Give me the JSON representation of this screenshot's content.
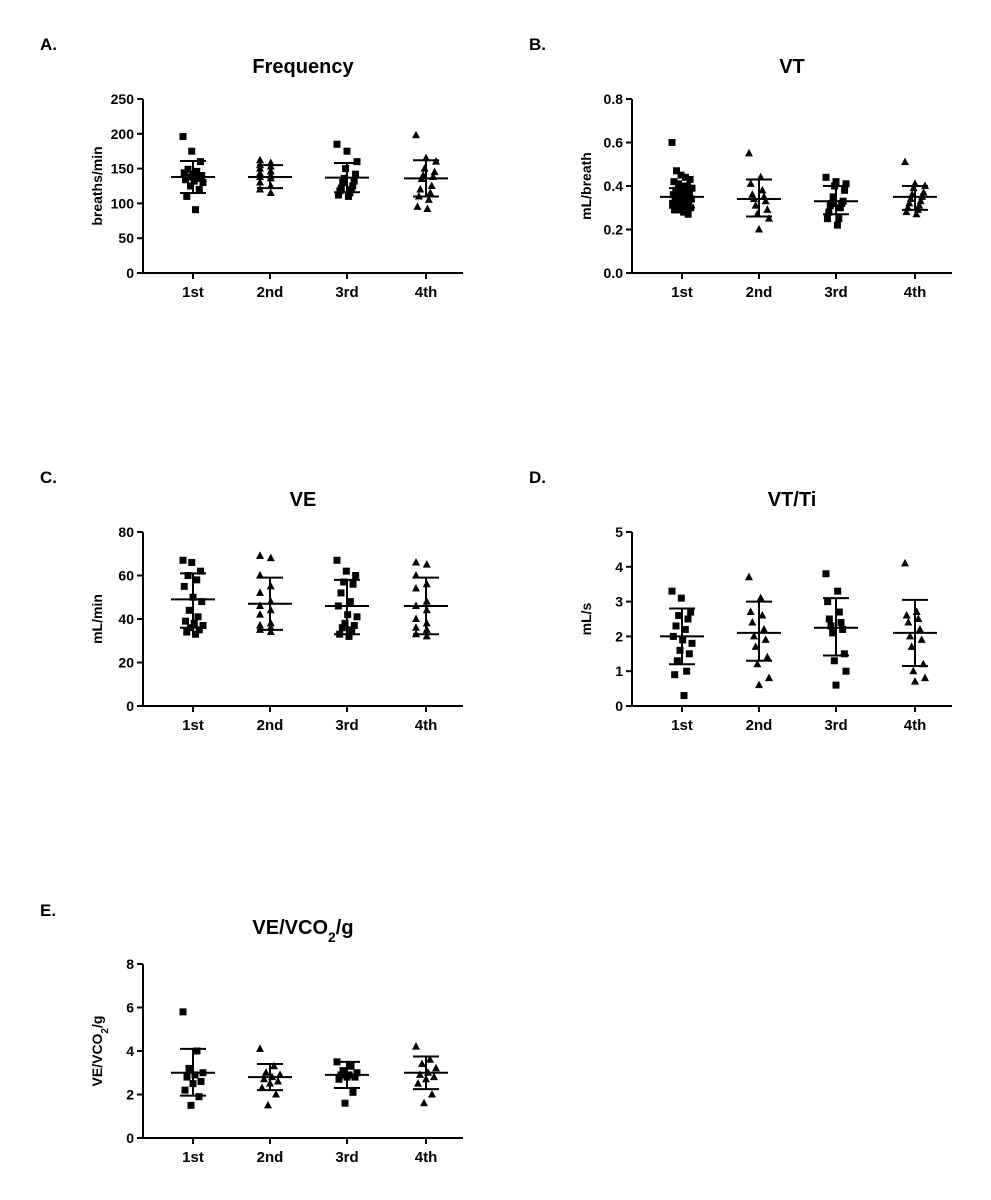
{
  "chart_data": [
    {
      "panel": "A.",
      "type": "scatter",
      "title": "Frequency",
      "title_sub": "",
      "title_after": "",
      "ylabel": "breaths/min",
      "ylabel_sub": "",
      "ylabel_after": "",
      "categories": [
        "1st",
        "2nd",
        "3rd",
        "4th"
      ],
      "ylim": [
        0,
        250
      ],
      "yticks": [
        0,
        50,
        100,
        150,
        200,
        250
      ],
      "ytick_labels": [
        "0",
        "50",
        "100",
        "150",
        "200",
        "250"
      ],
      "markers": [
        "square",
        "triangle",
        "square",
        "triangle"
      ],
      "series": [
        {
          "category": "1st",
          "mean": 138,
          "sd_low": 115,
          "sd_high": 161,
          "values": [
            196,
            175,
            160,
            149,
            146,
            144,
            142,
            140,
            138,
            136,
            134,
            132,
            130,
            125,
            120,
            110,
            91
          ]
        },
        {
          "category": "2nd",
          "mean": 138,
          "sd_low": 122,
          "sd_high": 155,
          "values": [
            162,
            158,
            155,
            153,
            150,
            146,
            143,
            140,
            138,
            136,
            130,
            125,
            120,
            115
          ]
        },
        {
          "category": "3rd",
          "mean": 137,
          "sd_low": 116,
          "sd_high": 158,
          "values": [
            185,
            175,
            160,
            150,
            142,
            136,
            132,
            130,
            125,
            122,
            120,
            118,
            115,
            112,
            110
          ]
        },
        {
          "category": "4th",
          "mean": 136,
          "sd_low": 110,
          "sd_high": 162,
          "values": [
            198,
            165,
            160,
            150,
            145,
            140,
            138,
            135,
            125,
            120,
            115,
            110,
            105,
            95,
            92
          ]
        }
      ]
    },
    {
      "panel": "B.",
      "type": "scatter",
      "title": "VT",
      "title_sub": "",
      "title_after": "",
      "ylabel": "mL/breath",
      "ylabel_sub": "",
      "ylabel_after": "",
      "categories": [
        "1st",
        "2nd",
        "3rd",
        "4th"
      ],
      "ylim": [
        0,
        0.8
      ],
      "yticks": [
        0,
        0.2,
        0.4,
        0.6,
        0.8
      ],
      "ytick_labels": [
        "0.0",
        "0.2",
        "0.4",
        "0.6",
        "0.8"
      ],
      "markers": [
        "square",
        "triangle",
        "square",
        "triangle"
      ],
      "series": [
        {
          "category": "1st",
          "mean": 0.35,
          "sd_low": 0.3,
          "sd_high": 0.39,
          "values": [
            0.6,
            0.47,
            0.45,
            0.44,
            0.43,
            0.42,
            0.41,
            0.4,
            0.4,
            0.39,
            0.38,
            0.38,
            0.37,
            0.37,
            0.36,
            0.36,
            0.35,
            0.35,
            0.34,
            0.34,
            0.33,
            0.33,
            0.32,
            0.32,
            0.31,
            0.31,
            0.3,
            0.3,
            0.29,
            0.29,
            0.28,
            0.27
          ]
        },
        {
          "category": "2nd",
          "mean": 0.34,
          "sd_low": 0.26,
          "sd_high": 0.43,
          "values": [
            0.55,
            0.44,
            0.41,
            0.38,
            0.36,
            0.35,
            0.34,
            0.33,
            0.31,
            0.29,
            0.27,
            0.25,
            0.2
          ]
        },
        {
          "category": "3rd",
          "mean": 0.33,
          "sd_low": 0.27,
          "sd_high": 0.4,
          "values": [
            0.44,
            0.42,
            0.41,
            0.4,
            0.38,
            0.35,
            0.33,
            0.32,
            0.32,
            0.31,
            0.3,
            0.28,
            0.25,
            0.25,
            0.22
          ]
        },
        {
          "category": "4th",
          "mean": 0.35,
          "sd_low": 0.29,
          "sd_high": 0.4,
          "values": [
            0.51,
            0.41,
            0.4,
            0.39,
            0.37,
            0.36,
            0.35,
            0.34,
            0.33,
            0.32,
            0.31,
            0.3,
            0.29,
            0.28,
            0.27
          ]
        }
      ]
    },
    {
      "panel": "C.",
      "type": "scatter",
      "title": "VE",
      "title_sub": "",
      "title_after": "",
      "ylabel": "mL/min",
      "ylabel_sub": "",
      "ylabel_after": "",
      "categories": [
        "1st",
        "2nd",
        "3rd",
        "4th"
      ],
      "ylim": [
        0,
        80
      ],
      "yticks": [
        0,
        20,
        40,
        60,
        80
      ],
      "ytick_labels": [
        "0",
        "20",
        "40",
        "60",
        "80"
      ],
      "markers": [
        "square",
        "triangle",
        "square",
        "triangle"
      ],
      "series": [
        {
          "category": "1st",
          "mean": 49,
          "sd_low": 36,
          "sd_high": 61,
          "values": [
            67,
            66,
            62,
            60,
            58,
            55,
            50,
            48,
            44,
            41,
            39,
            38,
            37,
            36,
            35,
            34,
            33
          ]
        },
        {
          "category": "2nd",
          "mean": 47,
          "sd_low": 35,
          "sd_high": 59,
          "values": [
            69,
            68,
            60,
            55,
            52,
            48,
            46,
            44,
            42,
            38,
            37,
            36,
            35,
            34
          ]
        },
        {
          "category": "3rd",
          "mean": 46,
          "sd_low": 33,
          "sd_high": 58,
          "values": [
            67,
            62,
            60,
            57,
            56,
            52,
            48,
            46,
            42,
            41,
            38,
            37,
            36,
            35,
            33,
            32
          ]
        },
        {
          "category": "4th",
          "mean": 46,
          "sd_low": 33,
          "sd_high": 59,
          "values": [
            66,
            65,
            60,
            56,
            54,
            48,
            46,
            44,
            40,
            38,
            36,
            35,
            33,
            32
          ]
        }
      ]
    },
    {
      "panel": "D.",
      "type": "scatter",
      "title": "VT/Ti",
      "title_sub": "",
      "title_after": "",
      "ylabel": "mL/s",
      "ylabel_sub": "",
      "ylabel_after": "",
      "categories": [
        "1st",
        "2nd",
        "3rd",
        "4th"
      ],
      "ylim": [
        0,
        5
      ],
      "yticks": [
        0,
        1,
        2,
        3,
        4,
        5
      ],
      "ytick_labels": [
        "0",
        "1",
        "2",
        "3",
        "4",
        "5"
      ],
      "markers": [
        "square",
        "triangle",
        "square",
        "triangle"
      ],
      "series": [
        {
          "category": "1st",
          "mean": 2.0,
          "sd_low": 1.2,
          "sd_high": 2.8,
          "values": [
            3.3,
            3.1,
            2.7,
            2.6,
            2.5,
            2.3,
            2.2,
            2.0,
            1.9,
            1.8,
            1.6,
            1.5,
            1.3,
            1.0,
            0.9,
            0.3
          ]
        },
        {
          "category": "2nd",
          "mean": 2.1,
          "sd_low": 1.3,
          "sd_high": 3.0,
          "values": [
            3.7,
            3.1,
            2.7,
            2.6,
            2.4,
            2.2,
            2.0,
            1.9,
            1.7,
            1.4,
            1.2,
            0.8,
            0.6
          ]
        },
        {
          "category": "3rd",
          "mean": 2.25,
          "sd_low": 1.45,
          "sd_high": 3.1,
          "values": [
            3.8,
            3.3,
            3.0,
            2.7,
            2.5,
            2.4,
            2.3,
            2.2,
            2.1,
            1.5,
            1.3,
            1.0,
            0.6
          ]
        },
        {
          "category": "4th",
          "mean": 2.1,
          "sd_low": 1.15,
          "sd_high": 3.05,
          "values": [
            4.1,
            2.7,
            2.6,
            2.5,
            2.4,
            2.2,
            2.0,
            1.9,
            1.7,
            1.2,
            1.0,
            0.8,
            0.7
          ]
        }
      ]
    },
    {
      "panel": "E.",
      "type": "scatter",
      "title": "VE/VCO",
      "title_sub": "2",
      "title_after": "/g",
      "ylabel": "VE/VCO",
      "ylabel_sub": "2",
      "ylabel_after": "/g",
      "categories": [
        "1st",
        "2nd",
        "3rd",
        "4th"
      ],
      "ylim": [
        0,
        8
      ],
      "yticks": [
        0,
        2,
        4,
        6,
        8
      ],
      "ytick_labels": [
        "0",
        "2",
        "4",
        "6",
        "8"
      ],
      "markers": [
        "square",
        "triangle",
        "square",
        "triangle"
      ],
      "series": [
        {
          "category": "1st",
          "mean": 3.0,
          "sd_low": 1.95,
          "sd_high": 4.1,
          "values": [
            5.8,
            4.0,
            3.2,
            3.0,
            2.9,
            2.8,
            2.6,
            2.5,
            2.2,
            1.9,
            1.5
          ]
        },
        {
          "category": "2nd",
          "mean": 2.8,
          "sd_low": 2.2,
          "sd_high": 3.4,
          "values": [
            4.1,
            3.3,
            3.0,
            2.9,
            2.8,
            2.7,
            2.6,
            2.5,
            2.3,
            2.0,
            1.5
          ]
        },
        {
          "category": "3rd",
          "mean": 2.9,
          "sd_low": 2.3,
          "sd_high": 3.5,
          "values": [
            3.5,
            3.3,
            3.1,
            3.0,
            2.9,
            2.9,
            2.8,
            2.8,
            2.7,
            2.1,
            1.6
          ]
        },
        {
          "category": "4th",
          "mean": 3.0,
          "sd_low": 2.25,
          "sd_high": 3.75,
          "values": [
            4.2,
            3.6,
            3.4,
            3.2,
            3.0,
            2.9,
            2.8,
            2.7,
            2.5,
            2.0,
            1.6
          ]
        }
      ]
    }
  ]
}
